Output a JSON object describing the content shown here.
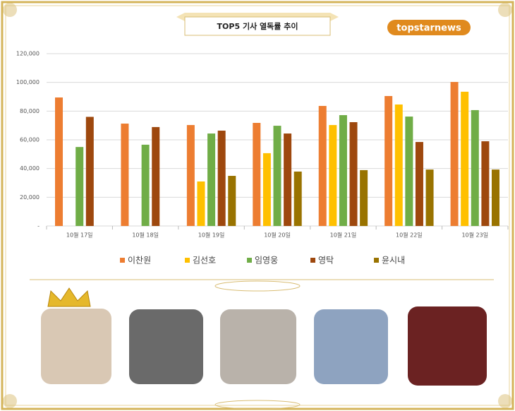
{
  "chart_data": {
    "type": "bar",
    "title": "TOP5 기사 열독률 추이",
    "brand": "topstarnews",
    "categories": [
      "10월 17일",
      "10월 18일",
      "10월 19일",
      "10월 20일",
      "10월 21일",
      "10월 22일",
      "10월 23일"
    ],
    "series": [
      {
        "name": "이찬원",
        "color": "#ed7d31",
        "values": [
          89500,
          71300,
          70300,
          71800,
          83600,
          90500,
          100300
        ]
      },
      {
        "name": "김선호",
        "color": "#ffc000",
        "values": [
          null,
          null,
          31000,
          50700,
          70300,
          84600,
          93500
        ]
      },
      {
        "name": "임영웅",
        "color": "#70ad47",
        "values": [
          55000,
          56600,
          64400,
          69800,
          77200,
          76200,
          80700
        ]
      },
      {
        "name": "영탁",
        "color": "#9e480e",
        "values": [
          76000,
          68900,
          66400,
          64400,
          72300,
          58500,
          59000
        ]
      },
      {
        "name": "윤시내",
        "color": "#997300",
        "values": [
          null,
          null,
          34900,
          37900,
          38900,
          39300,
          39300
        ]
      }
    ],
    "ylim": [
      0,
      120000
    ],
    "yticks": [
      {
        "value": 0,
        "label": "-"
      },
      {
        "value": 20000,
        "label": "20,000"
      },
      {
        "value": 40000,
        "label": "40,000"
      },
      {
        "value": 60000,
        "label": "60,000"
      },
      {
        "value": 80000,
        "label": "80,000"
      },
      {
        "value": 100000,
        "label": "100,000"
      },
      {
        "value": 120000,
        "label": "120,000"
      }
    ],
    "grid": true
  }
}
